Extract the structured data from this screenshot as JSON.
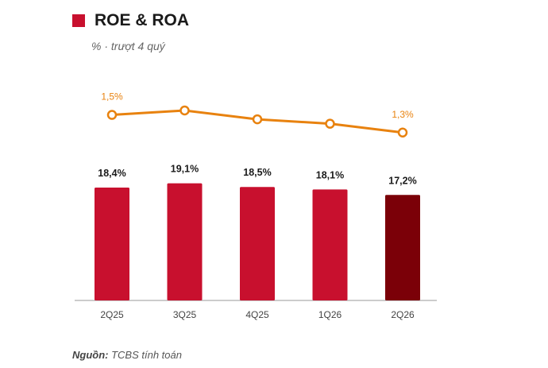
{
  "header": {
    "title": "ROE & ROA",
    "subtitle": "% · trượt 4 quý"
  },
  "footer": {
    "source_label": "Nguồn:",
    "source_text": " TCBS tính toán"
  },
  "colors": {
    "bar": "#c8102e",
    "bar_highlight": "#7b0008",
    "line": "#e8820f",
    "title_square": "#c8102e"
  },
  "chart_data": {
    "type": "bar",
    "title": "ROE & ROA",
    "subtitle": "% · trượt 4 quý",
    "categories": [
      "2Q25",
      "3Q25",
      "4Q25",
      "1Q26",
      "2Q26"
    ],
    "series": [
      {
        "type": "bar",
        "values": [
          18.4,
          19.1,
          18.5,
          18.1,
          17.2
        ],
        "labels": [
          "18,4%",
          "19,1%",
          "18,5%",
          "18,1%",
          "17,2%"
        ],
        "highlight_index": 4
      },
      {
        "type": "line",
        "values": [
          1.5,
          1.55,
          1.45,
          1.4,
          1.3
        ],
        "labels": [
          "1,5%",
          "",
          "",
          "",
          "1,3%"
        ]
      }
    ],
    "grid": false,
    "legend": "none"
  }
}
